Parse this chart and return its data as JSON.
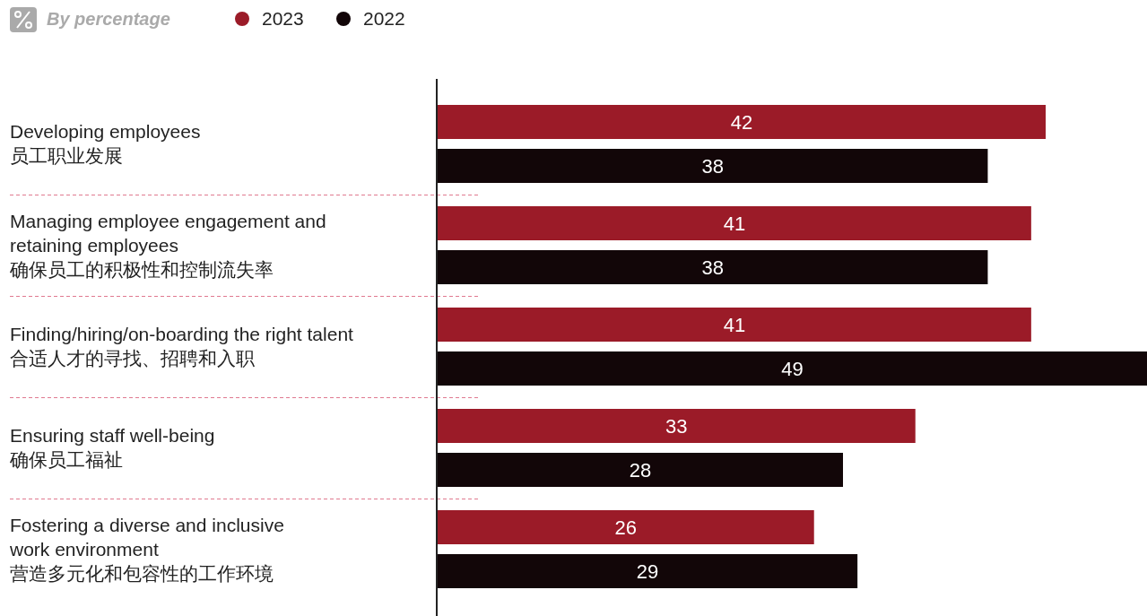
{
  "chart_data": {
    "type": "bar",
    "orientation": "horizontal",
    "title": "By percentage",
    "categories": [
      "Developing employees\n员工职业发展",
      "Managing employee engagement and\nretaining employees\n确保员工的积极性和控制流失率",
      "Finding/hiring/on-boarding the right talent\n合适人才的寻找、招聘和入职",
      "Ensuring staff well-being\n确保员工福祉",
      "Fostering a diverse and inclusive\nwork environment\n营造多元化和包容性的工作环境"
    ],
    "series": [
      {
        "name": "2023",
        "color": "#9b1b28",
        "values": [
          42,
          41,
          41,
          33,
          26
        ]
      },
      {
        "name": "2022",
        "color": "#120608",
        "values": [
          38,
          38,
          49,
          28,
          29
        ]
      }
    ],
    "data_labels": true,
    "legend": "top left"
  }
}
